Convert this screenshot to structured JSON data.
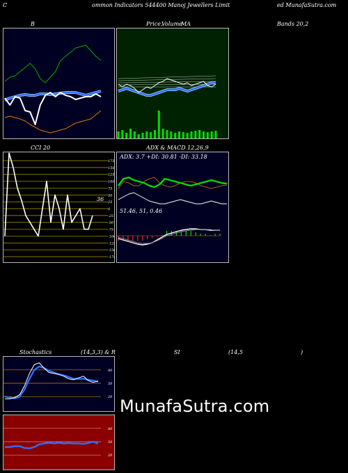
{
  "header": {
    "left": "C",
    "center": "ommon  Indicators 544400  Manoj Jewellers Limit",
    "right": "ed MunafaSutra.com"
  },
  "titles": {
    "bb": "B",
    "price": "Price,",
    "volume": "Volume",
    "ma": "MA",
    "bands": "Bands 20,2",
    "cci": "CCI 20",
    "adx": "ADX  & MACD 12,26,9",
    "stoch": "Stochastics",
    "stoch_params": "(14,3,3) & R",
    "si": "SI",
    "rsi_params": "(14,5",
    "paren": ")"
  },
  "adx_readout": "ADX: 3.7  +DI: 30.81 -DI: 33.18",
  "macd_readout": "51.46,  51,  0.46",
  "cci_value": "36",
  "watermark": "MunafaSutra.com",
  "colors": {
    "bb_bg": "#000022",
    "price_bg": "#002200",
    "cci_bg": "#000000",
    "cci_grid": "#b5a200",
    "adx_bg": "#000022",
    "stoch_bg": "#000022",
    "rsi_bg": "#8b0000",
    "blue": "#2e6fff",
    "green": "#00dd00",
    "orange": "#e07a00"
  },
  "chart_data": [
    {
      "type": "line",
      "panel": "bollinger",
      "title": "B",
      "series": [
        {
          "values": [
            82,
            88,
            90,
            96,
            102,
            108,
            100,
            86,
            80,
            88,
            96,
            112,
            118,
            124,
            130,
            132,
            134,
            126,
            118,
            112
          ]
        },
        {
          "values": [
            55,
            58,
            60,
            62,
            63,
            62,
            62,
            64,
            64,
            63,
            64,
            65,
            66,
            66,
            66,
            64,
            62,
            64,
            66,
            68
          ]
        },
        {
          "values": [
            30,
            32,
            30,
            28,
            25,
            20,
            16,
            12,
            10,
            8,
            10,
            12,
            14,
            18,
            22,
            24,
            26,
            28,
            34,
            40
          ]
        },
        {
          "values": [
            58,
            48,
            60,
            58,
            40,
            38,
            20,
            48,
            62,
            66,
            60,
            66,
            62,
            60,
            56,
            58,
            60,
            60,
            64,
            60
          ]
        }
      ]
    },
    {
      "type": "line",
      "panel": "price-ma",
      "series": [
        {
          "values": [
            60,
            56,
            60,
            58,
            54,
            48,
            52,
            56,
            54,
            58,
            62,
            64,
            68,
            66,
            64,
            62,
            60,
            62,
            58,
            60,
            62,
            64,
            58,
            56,
            60
          ]
        },
        {
          "values": [
            50,
            52,
            54,
            52,
            50,
            48,
            46,
            44,
            44,
            46,
            48,
            50,
            52,
            52,
            52,
            54,
            52,
            50,
            52,
            54,
            56,
            58,
            60,
            62,
            62
          ]
        },
        {
          "values": [
            10,
            12,
            8,
            14,
            10,
            6,
            8,
            10,
            9,
            12,
            40,
            14,
            12,
            10,
            8,
            10,
            9,
            8,
            10,
            11,
            12,
            10,
            9,
            10,
            11
          ]
        }
      ]
    },
    {
      "type": "line",
      "panel": "cci",
      "title": "CCI 20",
      "y_ticks": [
        "175",
        "150",
        "125",
        "100",
        "75",
        "50",
        "25",
        "0",
        "-25",
        "-50",
        "-75",
        "-100",
        "-125",
        "-150",
        "-175"
      ],
      "ylim": [
        -175,
        175
      ],
      "series": [
        {
          "values": [
            -100,
            250,
            150,
            75,
            30,
            -25,
            -50,
            -75,
            -100,
            0,
            100,
            -50,
            50,
            0,
            -75,
            50,
            -50,
            -25,
            0,
            -75,
            -75,
            -25
          ]
        }
      ]
    },
    {
      "type": "line",
      "panel": "adx-macd",
      "title": "ADX  & MACD 12,26,9",
      "series": [
        {
          "values": [
            30,
            40,
            42,
            38,
            36,
            34,
            30,
            28,
            32,
            40,
            38,
            36,
            34,
            32,
            30,
            32,
            34,
            36,
            38,
            36,
            34,
            33
          ]
        },
        {
          "values": [
            26,
            36,
            34,
            30,
            30,
            36,
            40,
            42,
            34,
            30,
            28,
            30,
            34,
            36,
            36,
            34,
            30,
            28,
            26,
            28,
            30,
            31
          ]
        },
        {
          "values": [
            10,
            14,
            18,
            20,
            16,
            12,
            8,
            6,
            4,
            4,
            6,
            8,
            10,
            8,
            6,
            4,
            4,
            6,
            8,
            6,
            4,
            4
          ]
        },
        {
          "values": [
            -4,
            -6,
            -8,
            -10,
            -12,
            -13,
            -12,
            -10,
            -6,
            -2,
            2,
            4,
            6,
            8,
            9,
            10,
            10,
            9,
            9,
            8,
            8,
            8
          ]
        },
        {
          "values": [
            -2,
            -4,
            -6,
            -8,
            -10,
            -11,
            -11,
            -10,
            -7,
            -4,
            0,
            2,
            4,
            6,
            7,
            8,
            9,
            9,
            9,
            9,
            8,
            8
          ]
        }
      ]
    },
    {
      "type": "line",
      "panel": "stochastics",
      "title": "Stochastics",
      "y_ticks": [
        "80",
        "50",
        "20"
      ],
      "ylim": [
        0,
        100
      ],
      "series": [
        {
          "values": [
            15,
            15,
            18,
            24,
            44,
            72,
            92,
            96,
            84,
            74,
            72,
            70,
            66,
            60,
            58,
            62,
            66,
            56,
            52,
            55
          ]
        },
        {
          "values": [
            20,
            18,
            16,
            20,
            36,
            60,
            80,
            88,
            84,
            78,
            74,
            70,
            68,
            64,
            60,
            60,
            60,
            58,
            56,
            54
          ]
        }
      ]
    },
    {
      "type": "line",
      "panel": "rsi",
      "y_ticks": [
        "80",
        "50",
        "20"
      ],
      "ylim": [
        0,
        100
      ],
      "series": [
        {
          "values": [
            38,
            38,
            40,
            40,
            36,
            35,
            38,
            44,
            46,
            48,
            46,
            48,
            46,
            47,
            46,
            46,
            45,
            47,
            50,
            46
          ]
        }
      ]
    }
  ]
}
